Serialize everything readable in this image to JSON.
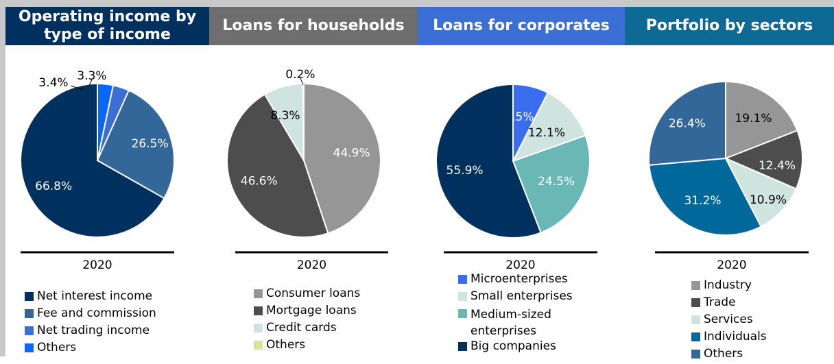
{
  "headers": [
    {
      "text": "Operating income by type of income",
      "bg": "#00305e"
    },
    {
      "text": "Loans for households",
      "bg": "#6e6e6e"
    },
    {
      "text": "Loans for corporates",
      "bg": "#3b6fd6"
    },
    {
      "text": "Portfolio by sectors",
      "bg": "#0e6a94"
    }
  ],
  "chart_data": [
    {
      "type": "pie",
      "title": "Operating income by type of income",
      "xlabel": "2020",
      "slices": [
        {
          "name": "Net interest income",
          "value": 66.8,
          "label": "66.8%",
          "color": "#00305e"
        },
        {
          "name": "Fee and commission",
          "value": 26.5,
          "label": "26.5%",
          "color": "#336699"
        },
        {
          "name": "Net trading income",
          "value": 3.4,
          "label": "3.4%",
          "color": "#3b6fd6"
        },
        {
          "name": "Others",
          "value": 3.3,
          "label": "3.3%",
          "color": "#0a66ff"
        }
      ],
      "legend": [
        "Net interest income",
        "Fee and commission",
        "Net trading income",
        "Others"
      ]
    },
    {
      "type": "pie",
      "title": "Loans for households",
      "xlabel": "2020",
      "slices": [
        {
          "name": "Consumer loans",
          "value": 44.9,
          "label": "44.9%",
          "color": "#969696"
        },
        {
          "name": "Mortgage loans",
          "value": 46.6,
          "label": "46.6%",
          "color": "#4d4d4d"
        },
        {
          "name": "Credit cards",
          "value": 8.3,
          "label": "8.3%",
          "color": "#cfe3df"
        },
        {
          "name": "Others",
          "value": 0.2,
          "label": "0.2%",
          "color": "#d7e59a"
        }
      ],
      "legend": [
        "Consumer loans",
        "Mortgage loans",
        "Credit cards",
        "Others"
      ]
    },
    {
      "type": "pie",
      "title": "Loans for corporates",
      "xlabel": "2020",
      "slices": [
        {
          "name": "Microenterprises",
          "value": 7.5,
          "label": "7.5%",
          "color": "#3a6cf0"
        },
        {
          "name": "Small enterprises",
          "value": 12.1,
          "label": "12.1%",
          "color": "#cfe3df"
        },
        {
          "name": "Medium-sized enterprises",
          "value": 24.5,
          "label": "24.5%",
          "color": "#69b8b6"
        },
        {
          "name": "Big companies",
          "value": 55.9,
          "label": "55.9%",
          "color": "#00305e"
        }
      ],
      "legend": [
        "Microenterprises",
        "Small enterprises",
        "Medium-sized enterprises",
        "Big companies"
      ]
    },
    {
      "type": "pie",
      "title": "Portfolio by sectors",
      "xlabel": "2020",
      "slices": [
        {
          "name": "Industry",
          "value": 19.1,
          "label": "19.1%",
          "color": "#969696"
        },
        {
          "name": "Trade",
          "value": 12.4,
          "label": "12.4%",
          "color": "#4d4d4d"
        },
        {
          "name": "Services",
          "value": 10.9,
          "label": "10.9%",
          "color": "#cfe3df"
        },
        {
          "name": "Individuals",
          "value": 31.2,
          "label": "31.2%",
          "color": "#00689a"
        },
        {
          "name": "Others",
          "value": 26.4,
          "label": "26.4%",
          "color": "#336699"
        }
      ],
      "legend": [
        "Industry",
        "Trade",
        "Services",
        "Individuals",
        "Others"
      ]
    }
  ]
}
